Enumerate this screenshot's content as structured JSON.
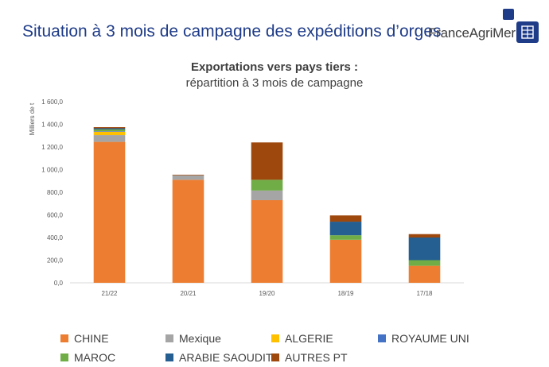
{
  "header": {
    "title": "Situation à 3 mois de campagne des expéditions d’orges",
    "brand": "FranceAgriMer"
  },
  "chart_data": {
    "type": "bar",
    "stacked": true,
    "title": "Exportations vers pays tiers :",
    "subtitle": "répartition à 3 mois de campagne",
    "xlabel": "",
    "ylabel": "Milliers de t",
    "ylim": [
      0,
      1600
    ],
    "yticks": [
      "0,0",
      "200,0",
      "400,0",
      "600,0",
      "800,0",
      "1 000,0",
      "1 200,0",
      "1 400,0",
      "1 600,0"
    ],
    "grid": false,
    "categories": [
      "21/22",
      "20/21",
      "19/20",
      "18/19",
      "17/18"
    ],
    "series": [
      {
        "name": "CHINE",
        "color": "#ed7d31",
        "values": [
          1245,
          910,
          730,
          380,
          150
        ]
      },
      {
        "name": "Mexique",
        "color": "#a5a5a5",
        "values": [
          60,
          40,
          85,
          0,
          0
        ]
      },
      {
        "name": "ALGERIE",
        "color": "#ffc000",
        "values": [
          30,
          0,
          0,
          0,
          0
        ]
      },
      {
        "name": "ROYAUME UNI",
        "color": "#4472c4",
        "values": [
          5,
          0,
          0,
          0,
          0
        ]
      },
      {
        "name": "MAROC",
        "color": "#70ad47",
        "values": [
          15,
          0,
          95,
          40,
          50
        ]
      },
      {
        "name": "ARABIE SAOUDITE",
        "color": "#255e91",
        "values": [
          10,
          0,
          0,
          120,
          200
        ]
      },
      {
        "name": "AUTRES PT",
        "color": "#9e480e",
        "values": [
          10,
          5,
          330,
          55,
          30
        ]
      }
    ]
  }
}
